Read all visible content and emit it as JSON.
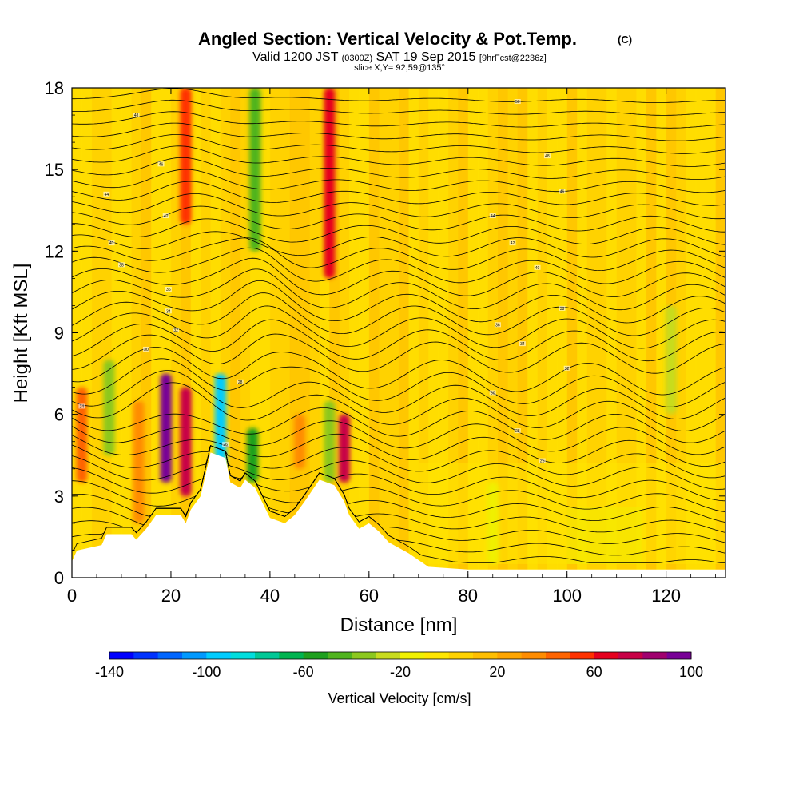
{
  "header": {
    "title": "Angled Section: Vertical Velocity & Pot.Temp.",
    "title_unit": "(C)",
    "valid_prefix": "Valid 1200 JST",
    "valid_utc": "(0300Z)",
    "valid_date": "SAT 19 Sep 2015",
    "forecast": "[9hrFcst@2236z]",
    "slice": "slice X,Y= 92,59@135°"
  },
  "chart_data": {
    "type": "heatmap",
    "xlabel": "Distance [nm]",
    "ylabel": "Height [Kft MSL]",
    "xlim": [
      0,
      132
    ],
    "ylim": [
      0,
      18
    ],
    "xticks": [
      0,
      20,
      40,
      60,
      80,
      100,
      120
    ],
    "yticks": [
      0,
      3,
      6,
      9,
      12,
      15,
      18
    ],
    "colorbar": {
      "label": "Vertical Velocity [cm/s]",
      "min": -140,
      "max": 100,
      "step": 10,
      "tick_labels": [
        "-140",
        "-100",
        "-60",
        "-20",
        "20",
        "60",
        "100"
      ],
      "colors": [
        "#0000ff",
        "#0033ff",
        "#0066ff",
        "#0099ff",
        "#00ccff",
        "#00dddd",
        "#00c896",
        "#00b450",
        "#1ea01e",
        "#50b41e",
        "#8cc81e",
        "#c8dc1e",
        "#f0f000",
        "#ffe600",
        "#ffd200",
        "#ffbe00",
        "#ffa500",
        "#ff8c00",
        "#ff6400",
        "#ff3200",
        "#e6001e",
        "#c80046",
        "#a0006e",
        "#780096"
      ]
    },
    "velocity_columns": [
      {
        "x": 2,
        "z0": 3.5,
        "z1": 7.0,
        "value": 40
      },
      {
        "x": 7.5,
        "z0": 4.5,
        "z1": 8.0,
        "value": -40
      },
      {
        "x": 13.5,
        "z0": 2.0,
        "z1": 6.5,
        "value": 30
      },
      {
        "x": 19,
        "z0": 3.5,
        "z1": 7.5,
        "value": 90
      },
      {
        "x": 23,
        "z0": 3.0,
        "z1": 7.0,
        "value": 70
      },
      {
        "x": 23,
        "z0": 13.0,
        "z1": 18.0,
        "value": 50
      },
      {
        "x": 30,
        "z0": 4.0,
        "z1": 7.5,
        "value": -100
      },
      {
        "x": 36.5,
        "z0": 3.5,
        "z1": 5.5,
        "value": -60
      },
      {
        "x": 37,
        "z0": 12.0,
        "z1": 18.0,
        "value": -50
      },
      {
        "x": 46,
        "z0": 4.0,
        "z1": 6.0,
        "value": 30
      },
      {
        "x": 52,
        "z0": 3.5,
        "z1": 6.5,
        "value": -40
      },
      {
        "x": 52,
        "z0": 11.0,
        "z1": 18.0,
        "value": 60
      },
      {
        "x": 55,
        "z0": 3.5,
        "z1": 6.0,
        "value": 70
      },
      {
        "x": 85,
        "z0": 0.5,
        "z1": 3.5,
        "value": -20
      },
      {
        "x": 121,
        "z0": 6.0,
        "z1": 10.0,
        "value": -30
      }
    ],
    "theta_labels": [
      {
        "x": 13,
        "z": 17.0,
        "text": "48"
      },
      {
        "x": 18,
        "z": 15.2,
        "text": "46"
      },
      {
        "x": 7,
        "z": 14.1,
        "text": "44"
      },
      {
        "x": 19,
        "z": 13.3,
        "text": "42"
      },
      {
        "x": 8,
        "z": 12.3,
        "text": "40"
      },
      {
        "x": 10,
        "z": 11.5,
        "text": "38"
      },
      {
        "x": 19.5,
        "z": 10.6,
        "text": "36"
      },
      {
        "x": 19.5,
        "z": 9.8,
        "text": "34"
      },
      {
        "x": 21,
        "z": 9.1,
        "text": "32"
      },
      {
        "x": 15,
        "z": 8.4,
        "text": "30"
      },
      {
        "x": 34,
        "z": 7.2,
        "text": "28"
      },
      {
        "x": 31,
        "z": 4.9,
        "text": "26"
      },
      {
        "x": 2,
        "z": 6.3,
        "text": "24"
      },
      {
        "x": 90,
        "z": 17.5,
        "text": "50"
      },
      {
        "x": 96,
        "z": 15.5,
        "text": "48"
      },
      {
        "x": 99,
        "z": 14.2,
        "text": "46"
      },
      {
        "x": 85,
        "z": 13.3,
        "text": "44"
      },
      {
        "x": 89,
        "z": 12.3,
        "text": "42"
      },
      {
        "x": 94,
        "z": 11.4,
        "text": "40"
      },
      {
        "x": 99,
        "z": 9.9,
        "text": "38"
      },
      {
        "x": 86,
        "z": 9.3,
        "text": "36"
      },
      {
        "x": 91,
        "z": 8.6,
        "text": "34"
      },
      {
        "x": 100,
        "z": 7.7,
        "text": "32"
      },
      {
        "x": 85,
        "z": 6.8,
        "text": "30"
      },
      {
        "x": 90,
        "z": 5.4,
        "text": "28"
      },
      {
        "x": 95,
        "z": 4.3,
        "text": "26"
      }
    ]
  }
}
